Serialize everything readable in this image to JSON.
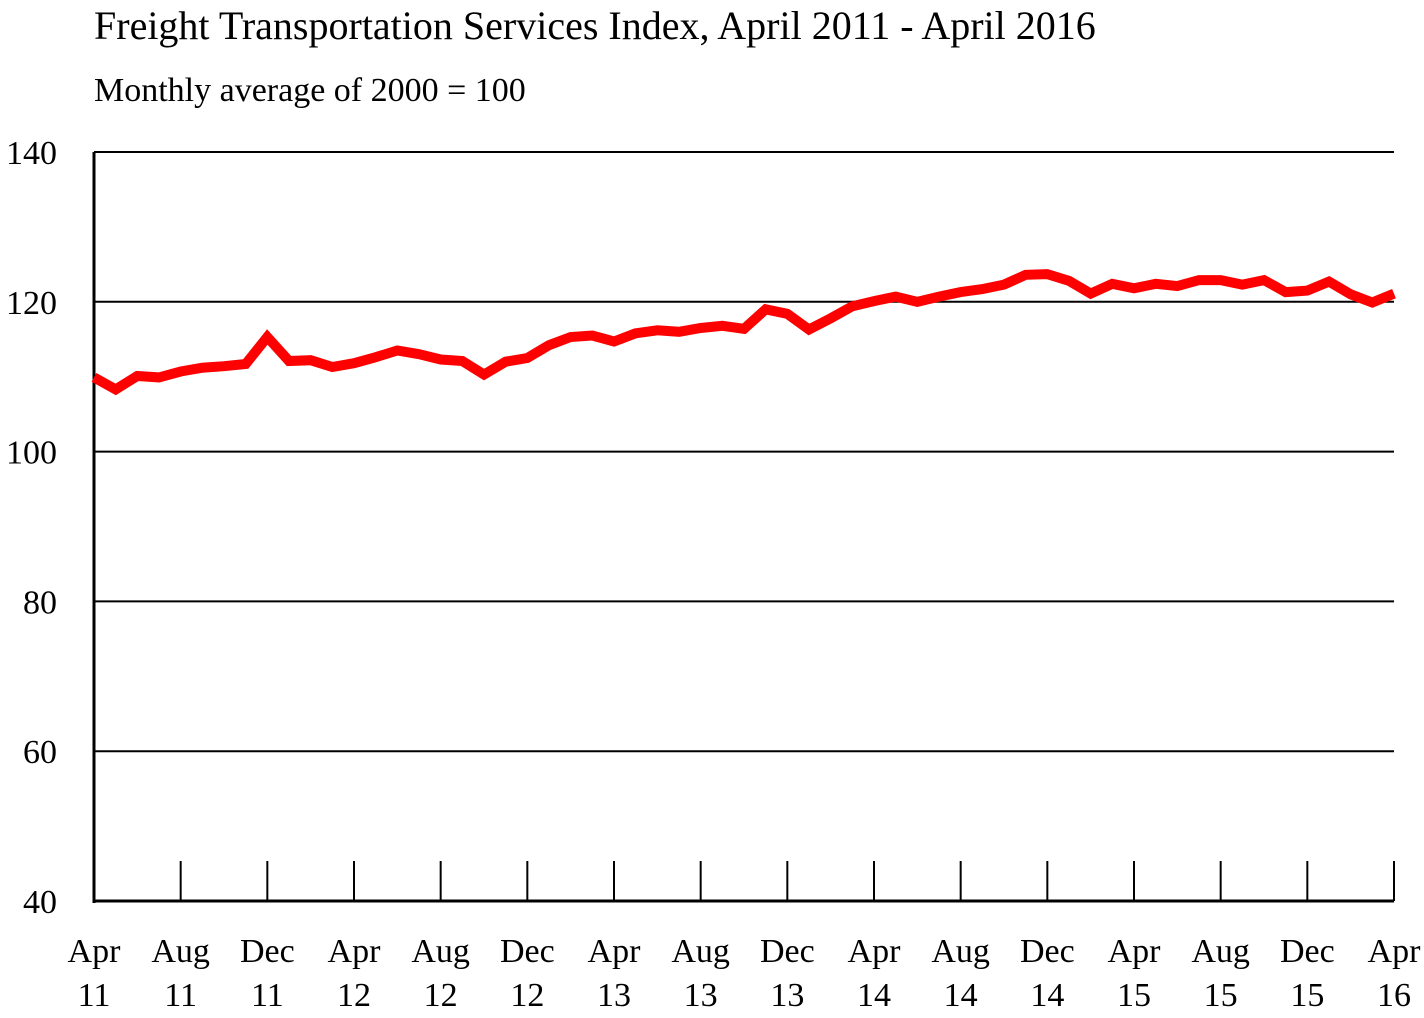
{
  "chart_data": {
    "type": "line",
    "title": "Freight Transportation Services Index, April 2011 - April 2016",
    "subtitle": "Monthly average of 2000 = 100",
    "xlabel": "",
    "ylabel": "",
    "ylim": [
      40,
      140
    ],
    "yticks": [
      "40",
      "60",
      "80",
      "100",
      "120",
      "140"
    ],
    "xtick_labels": [
      [
        "Apr",
        "11"
      ],
      [
        "Aug",
        "11"
      ],
      [
        "Dec",
        "11"
      ],
      [
        "Apr",
        "12"
      ],
      [
        "Aug",
        "12"
      ],
      [
        "Dec",
        "12"
      ],
      [
        "Apr",
        "13"
      ],
      [
        "Aug",
        "13"
      ],
      [
        "Dec",
        "13"
      ],
      [
        "Apr",
        "14"
      ],
      [
        "Aug",
        "14"
      ],
      [
        "Dec",
        "14"
      ],
      [
        "Apr",
        "15"
      ],
      [
        "Aug",
        "15"
      ],
      [
        "Dec",
        "15"
      ],
      [
        "Apr",
        "16"
      ]
    ],
    "x": [
      "2011-04",
      "2011-05",
      "2011-06",
      "2011-07",
      "2011-08",
      "2011-09",
      "2011-10",
      "2011-11",
      "2011-12",
      "2012-01",
      "2012-02",
      "2012-03",
      "2012-04",
      "2012-05",
      "2012-06",
      "2012-07",
      "2012-08",
      "2012-09",
      "2012-10",
      "2012-11",
      "2012-12",
      "2013-01",
      "2013-02",
      "2013-03",
      "2013-04",
      "2013-05",
      "2013-06",
      "2013-07",
      "2013-08",
      "2013-09",
      "2013-10",
      "2013-11",
      "2013-12",
      "2014-01",
      "2014-02",
      "2014-03",
      "2014-04",
      "2014-05",
      "2014-06",
      "2014-07",
      "2014-08",
      "2014-09",
      "2014-10",
      "2014-11",
      "2014-12",
      "2015-01",
      "2015-02",
      "2015-03",
      "2015-04",
      "2015-05",
      "2015-06",
      "2015-07",
      "2015-08",
      "2015-09",
      "2015-10",
      "2015-11",
      "2015-12",
      "2016-01",
      "2016-02",
      "2016-03",
      "2016-04"
    ],
    "series": [
      {
        "color": "#ff0000",
        "values": [
          109.9,
          108.3,
          110.1,
          109.9,
          110.7,
          111.2,
          111.4,
          111.7,
          115.3,
          112.1,
          112.2,
          111.3,
          111.8,
          112.6,
          113.5,
          113.0,
          112.3,
          112.1,
          110.3,
          112.0,
          112.5,
          114.2,
          115.3,
          115.5,
          114.7,
          115.8,
          116.2,
          116.0,
          116.5,
          116.8,
          116.4,
          119.0,
          118.4,
          116.3,
          117.8,
          119.4,
          120.1,
          120.7,
          120.0,
          120.7,
          121.3,
          121.7,
          122.3,
          123.6,
          123.7,
          122.8,
          121.1,
          122.4,
          121.8,
          122.4,
          122.1,
          122.9,
          122.9,
          122.3,
          122.9,
          121.3,
          121.5,
          122.7,
          121.0,
          119.9,
          121.1
        ]
      }
    ],
    "grid": true,
    "line_color": "#ff0000",
    "axis_color": "#000000"
  }
}
